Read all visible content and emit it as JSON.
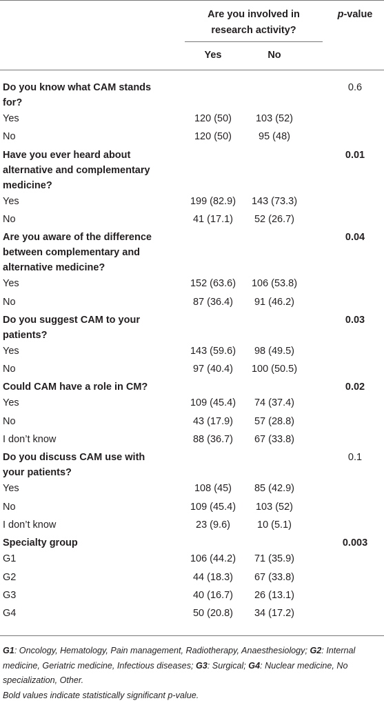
{
  "header": {
    "group_title_lines": [
      "Are you involved in",
      "research activity?"
    ],
    "pvalue_italic": "p",
    "pvalue_rest": "-value",
    "col_yes": "Yes",
    "col_no": "No"
  },
  "sections": [
    {
      "lines": [
        "Do you know what CAM stands",
        "for?"
      ],
      "p": "0.6",
      "bold": false,
      "rows": [
        {
          "label": "Yes",
          "yes": "120 (50)",
          "no": "103 (52)"
        },
        {
          "label": "No",
          "yes": "120 (50)",
          "no": "95 (48)"
        }
      ]
    },
    {
      "lines": [
        "Have you ever heard about",
        "alternative and complementary",
        "medicine?"
      ],
      "p": "0.01",
      "bold": true,
      "rows": [
        {
          "label": "Yes",
          "yes": "199 (82.9)",
          "no": "143 (73.3)"
        },
        {
          "label": "No",
          "yes": "41 (17.1)",
          "no": "52 (26.7)"
        }
      ]
    },
    {
      "lines": [
        "Are you aware of the difference",
        "between complementary and",
        "alternative medicine?"
      ],
      "p": "0.04",
      "bold": true,
      "rows": [
        {
          "label": "Yes",
          "yes": "152 (63.6)",
          "no": "106 (53.8)"
        },
        {
          "label": "No",
          "yes": "87 (36.4)",
          "no": "91 (46.2)"
        }
      ]
    },
    {
      "lines": [
        "Do you suggest CAM to your",
        "patients?"
      ],
      "p": "0.03",
      "bold": true,
      "rows": [
        {
          "label": "Yes",
          "yes": "143 (59.6)",
          "no": "98 (49.5)"
        },
        {
          "label": "No",
          "yes": "97 (40.4)",
          "no": "100 (50.5)"
        }
      ]
    },
    {
      "lines": [
        "Could CAM have a role in CM?"
      ],
      "p": "0.02",
      "bold": true,
      "rows": [
        {
          "label": "Yes",
          "yes": "109 (45.4)",
          "no": "74 (37.4)"
        },
        {
          "label": "No",
          "yes": "43 (17.9)",
          "no": "57 (28.8)"
        },
        {
          "label": "I don’t know",
          "yes": "88 (36.7)",
          "no": "67 (33.8)"
        }
      ]
    },
    {
      "lines": [
        "Do you discuss CAM use with",
        "your patients?"
      ],
      "p": "0.1",
      "bold": false,
      "rows": [
        {
          "label": "Yes",
          "yes": "108 (45)",
          "no": "85 (42.9)"
        },
        {
          "label": "No",
          "yes": "109 (45.4)",
          "no": "103 (52)"
        },
        {
          "label": "I don’t know",
          "yes": "23 (9.6)",
          "no": "10 (5.1)"
        }
      ]
    },
    {
      "lines": [
        "Specialty group"
      ],
      "p": "0.003",
      "bold": true,
      "rows": [
        {
          "label": "G1",
          "yes": "106 (44.2)",
          "no": "71 (35.9)"
        },
        {
          "label": "G2",
          "yes": "44 (18.3)",
          "no": "67 (33.8)"
        },
        {
          "label": "G3",
          "yes": "40 (16.7)",
          "no": "26 (13.1)"
        },
        {
          "label": "G4",
          "yes": "50 (20.8)",
          "no": "34 (17.2)"
        }
      ]
    }
  ],
  "footnote": {
    "definitions": [
      {
        "term": "G1",
        "text": ": Oncology, Hematology, Pain management, Radiotherapy, Anaesthesiology; "
      },
      {
        "term": "G2",
        "text": ": Internal medicine, Geriatric medicine, Infectious diseases; "
      },
      {
        "term": "G3",
        "text": ": Surgical; "
      },
      {
        "term": "G4",
        "text": ": Nuclear medicine, No specialization, Other."
      }
    ],
    "note": "Bold values indicate statistically significant p-value."
  }
}
